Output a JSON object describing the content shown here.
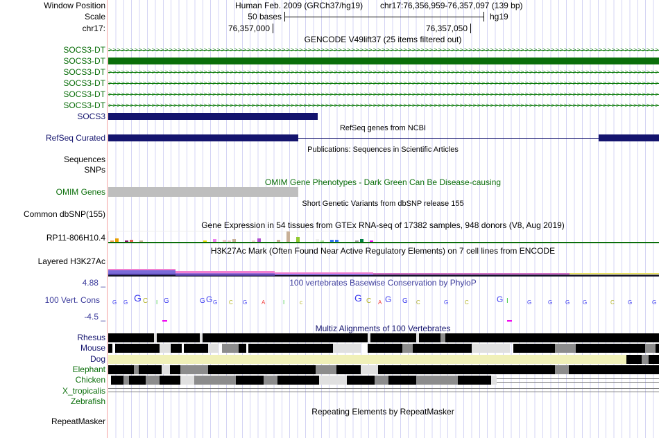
{
  "header": {
    "window_position_label": "Window Position",
    "assembly": "Human Feb. 2009 (GRCh37/hg19)",
    "position": "chr17:76,356,959-76,357,097 (139 bp)",
    "scale_label": "Scale",
    "scale_text": "50 bases",
    "scale_db": "hg19",
    "chrom_label": "chr17:",
    "tick1": "76,357,000",
    "tick2": "76,357,050"
  },
  "tracks": {
    "gencode": {
      "title": "GENCODE V49lift37 (25 items filtered out)",
      "items": [
        "SOCS3-DT",
        "SOCS3-DT",
        "SOCS3-DT",
        "SOCS3-DT",
        "SOCS3-DT",
        "SOCS3-DT",
        "SOCS3"
      ]
    },
    "refseq": {
      "title": "RefSeq genes from NCBI",
      "label": "RefSeq Curated"
    },
    "publications": {
      "title": "Publications: Sequences in Scientific Articles",
      "label1": "Sequences",
      "label2": "SNPs"
    },
    "omim": {
      "title": "OMIM Gene Phenotypes - Dark Green Can Be Disease-causing",
      "label": "OMIM Genes"
    },
    "dbsnp": {
      "title": "Short Genetic Variants from dbSNP release 155",
      "label": "Common dbSNP(155)"
    },
    "gtex": {
      "title": "Gene Expression in 54 tissues from GTEx RNA-seq of 17382 samples, 948 donors (V8, Aug 2019)",
      "label": "RP11-806H10.4",
      "values": [
        2,
        5,
        1,
        2,
        3,
        1,
        2,
        1,
        0,
        1,
        0,
        0,
        0,
        0,
        0,
        1,
        0,
        0,
        0,
        2,
        1,
        4,
        1,
        3,
        2,
        4,
        1,
        1,
        1,
        2,
        5,
        0,
        0,
        0,
        3,
        1,
        12,
        1,
        6,
        1,
        0,
        0,
        4,
        2,
        0,
        3,
        3,
        1,
        1,
        1,
        2,
        4,
        1,
        2
      ],
      "colors": [
        "#f0a050",
        "#e8a000",
        "#98d098",
        "#801060",
        "#e06050",
        "#e00000",
        "#c8b098",
        "#e8e000",
        "#e8e000",
        "#e8e000",
        "#e8e000",
        "#e8e000",
        "#e8e000",
        "#e8e000",
        "#c8b098",
        "#e8e000",
        "#e8e000",
        "#e8e000",
        "#e8e000",
        "#e8e000",
        "#00c8c8",
        "#f080f0",
        "#90b0c8",
        "#f0c8c8",
        "#f0c8c8",
        "#c8b098",
        "#c8b098",
        "#a08070",
        "#c8b098",
        "#f0d0d0",
        "#b050d0",
        "#c8b098",
        "#c8b098",
        "#c8b098",
        "#c8b098",
        "#c8b098",
        "#c8b098",
        "#c8b098",
        "#90c830",
        "#c8b098",
        "#e8e000",
        "#f8b0c0",
        "#f0f0f0",
        "#b0e0a0",
        "#d8d8d8",
        "#3070f0",
        "#3070f0",
        "#c8b098",
        "#c8b098",
        "#f8c8a0",
        "#a0a0a0",
        "#008040",
        "#f0d0d0",
        "#f000f0"
      ]
    },
    "h3k27ac": {
      "title": "H3K27Ac Mark (Often Found Near Active Regulatory Elements) on 7 cell lines from ENCODE",
      "label": "Layered H3K27Ac"
    },
    "phylop": {
      "title": "100 vertebrates Basewise Conservation by PhyloP",
      "label": "100 Vert. Cons",
      "max": "4.88 _",
      "min": "-4.5 _"
    },
    "multiz": {
      "title": "Multiz Alignments of 100 Vertebrates",
      "species": [
        "Rhesus",
        "Mouse",
        "Dog",
        "Elephant",
        "Chicken",
        "X_tropicalis",
        "Zebrafish"
      ]
    },
    "repeatmasker": {
      "title": "Repeating Elements by RepeatMasker",
      "label": "RepeatMasker"
    }
  },
  "colors": {
    "gencode": "#0a7a0a",
    "socs3": "#14146e",
    "refseq": "#14146e",
    "omim": "#bebebe",
    "dog": "#f0f0b8"
  }
}
